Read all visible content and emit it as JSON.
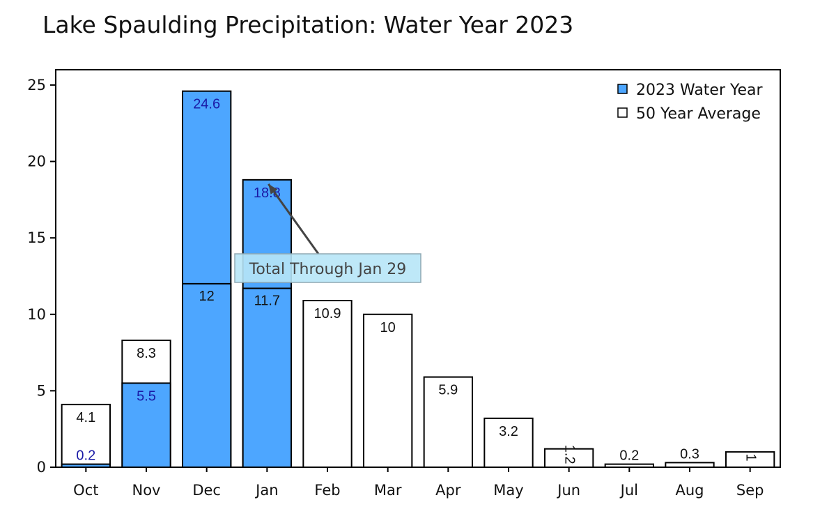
{
  "chart_data": {
    "type": "bar",
    "title": "Lake Spaulding Precipitation: Water Year 2023",
    "xlabel": "",
    "ylabel": "",
    "ylim": [
      0,
      26
    ],
    "yticks": [
      0,
      5,
      10,
      15,
      20,
      25
    ],
    "categories": [
      "Oct",
      "Nov",
      "Dec",
      "Jan",
      "Feb",
      "Mar",
      "Apr",
      "May",
      "Jun",
      "Jul",
      "Aug",
      "Sep"
    ],
    "series": [
      {
        "name": "50 Year Average",
        "values": [
          4.1,
          8.3,
          12,
          11.7,
          10.9,
          10,
          5.9,
          3.2,
          1.2,
          0.2,
          0.3,
          1.0
        ],
        "labels": [
          "4.1",
          "8.3",
          "12",
          "11.7",
          "10.9",
          "10",
          "5.9",
          "3.2",
          "1.2",
          "0.2",
          "0.3",
          "1"
        ],
        "color": "#ffffff",
        "label_color": "#111111"
      },
      {
        "name": "2023 Water Year",
        "values": [
          0.2,
          5.5,
          24.6,
          18.8,
          null,
          null,
          null,
          null,
          null,
          null,
          null,
          null
        ],
        "labels": [
          "0.2",
          "5.5",
          "24.6",
          "18.8",
          "",
          "",
          "",
          "",
          "",
          "",
          "",
          ""
        ],
        "color": "#4da6ff",
        "label_color": "#1a1aa6"
      }
    ],
    "legend": {
      "placement": "top-right",
      "entries": [
        "2023 Water Year",
        "50 Year Average"
      ]
    },
    "annotation": {
      "text": "Total Through Jan 29",
      "target_category": "Jan",
      "target_value": 18.8
    },
    "grid": false
  }
}
